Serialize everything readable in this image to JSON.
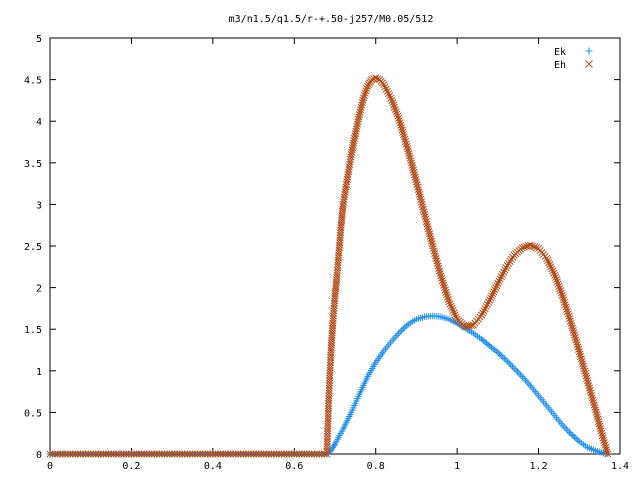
{
  "chart_data": {
    "type": "scatter",
    "title": "m3/n1.5/q1.5/r-+.50-j257/M0.05/512",
    "xlabel": "",
    "ylabel": "",
    "xlim": [
      0,
      1.4
    ],
    "ylim": [
      0,
      5
    ],
    "x_ticks": [
      0,
      0.2,
      0.4,
      0.6,
      0.8,
      1,
      1.2,
      1.4
    ],
    "x_tick_labels": [
      "0",
      "0.2",
      "0.4",
      "0.6",
      "0.8",
      "1",
      "1.2",
      "1.4"
    ],
    "y_ticks": [
      0,
      0.5,
      1,
      1.5,
      2,
      2.5,
      3,
      3.5,
      4,
      4.5,
      5
    ],
    "y_tick_labels": [
      "0",
      "0.5",
      "1",
      "1.5",
      "2",
      "2.5",
      "3",
      "3.5",
      "4",
      "4.5",
      "5"
    ],
    "grid": false,
    "legend_position": "top-right",
    "series": [
      {
        "name": "Ek",
        "marker": "plus",
        "color": "#1f8fe8",
        "points": [
          [
            0,
            0
          ],
          [
            0.1,
            0
          ],
          [
            0.2,
            0
          ],
          [
            0.3,
            0
          ],
          [
            0.4,
            0
          ],
          [
            0.5,
            0
          ],
          [
            0.6,
            0
          ],
          [
            0.68,
            0
          ],
          [
            0.69,
            0.04
          ],
          [
            0.7,
            0.12
          ],
          [
            0.72,
            0.3
          ],
          [
            0.74,
            0.5
          ],
          [
            0.76,
            0.72
          ],
          [
            0.78,
            0.93
          ],
          [
            0.8,
            1.1
          ],
          [
            0.82,
            1.24
          ],
          [
            0.84,
            1.36
          ],
          [
            0.86,
            1.47
          ],
          [
            0.88,
            1.56
          ],
          [
            0.9,
            1.62
          ],
          [
            0.92,
            1.65
          ],
          [
            0.94,
            1.66
          ],
          [
            0.96,
            1.65
          ],
          [
            0.98,
            1.62
          ],
          [
            1.0,
            1.57
          ],
          [
            1.02,
            1.51
          ],
          [
            1.04,
            1.45
          ],
          [
            1.06,
            1.38
          ],
          [
            1.08,
            1.3
          ],
          [
            1.1,
            1.22
          ],
          [
            1.12,
            1.13
          ],
          [
            1.14,
            1.03
          ],
          [
            1.16,
            0.93
          ],
          [
            1.18,
            0.82
          ],
          [
            1.2,
            0.7
          ],
          [
            1.22,
            0.58
          ],
          [
            1.24,
            0.46
          ],
          [
            1.26,
            0.34
          ],
          [
            1.28,
            0.24
          ],
          [
            1.3,
            0.15
          ],
          [
            1.32,
            0.08
          ],
          [
            1.34,
            0.04
          ],
          [
            1.36,
            0.01
          ],
          [
            1.37,
            0
          ]
        ]
      },
      {
        "name": "Eh",
        "marker": "cross",
        "color": "#b24a18",
        "points": [
          [
            0,
            0
          ],
          [
            0.1,
            0
          ],
          [
            0.2,
            0
          ],
          [
            0.3,
            0
          ],
          [
            0.4,
            0
          ],
          [
            0.5,
            0
          ],
          [
            0.6,
            0
          ],
          [
            0.68,
            0
          ],
          [
            0.685,
            0.7
          ],
          [
            0.69,
            1.22
          ],
          [
            0.695,
            1.6
          ],
          [
            0.7,
            1.9
          ],
          [
            0.705,
            2.15
          ],
          [
            0.71,
            2.45
          ],
          [
            0.715,
            2.75
          ],
          [
            0.72,
            3.0
          ],
          [
            0.73,
            3.3
          ],
          [
            0.74,
            3.6
          ],
          [
            0.75,
            3.85
          ],
          [
            0.76,
            4.08
          ],
          [
            0.77,
            4.28
          ],
          [
            0.78,
            4.42
          ],
          [
            0.79,
            4.5
          ],
          [
            0.8,
            4.52
          ],
          [
            0.81,
            4.5
          ],
          [
            0.82,
            4.44
          ],
          [
            0.84,
            4.25
          ],
          [
            0.86,
            3.98
          ],
          [
            0.88,
            3.64
          ],
          [
            0.9,
            3.27
          ],
          [
            0.92,
            2.88
          ],
          [
            0.94,
            2.5
          ],
          [
            0.96,
            2.14
          ],
          [
            0.98,
            1.83
          ],
          [
            1.0,
            1.62
          ],
          [
            1.02,
            1.53
          ],
          [
            1.04,
            1.55
          ],
          [
            1.06,
            1.67
          ],
          [
            1.08,
            1.85
          ],
          [
            1.1,
            2.05
          ],
          [
            1.12,
            2.24
          ],
          [
            1.14,
            2.39
          ],
          [
            1.16,
            2.48
          ],
          [
            1.18,
            2.51
          ],
          [
            1.2,
            2.47
          ],
          [
            1.22,
            2.35
          ],
          [
            1.24,
            2.15
          ],
          [
            1.26,
            1.88
          ],
          [
            1.28,
            1.57
          ],
          [
            1.3,
            1.23
          ],
          [
            1.32,
            0.88
          ],
          [
            1.34,
            0.53
          ],
          [
            1.355,
            0.25
          ],
          [
            1.365,
            0.08
          ],
          [
            1.37,
            0
          ]
        ]
      }
    ]
  }
}
